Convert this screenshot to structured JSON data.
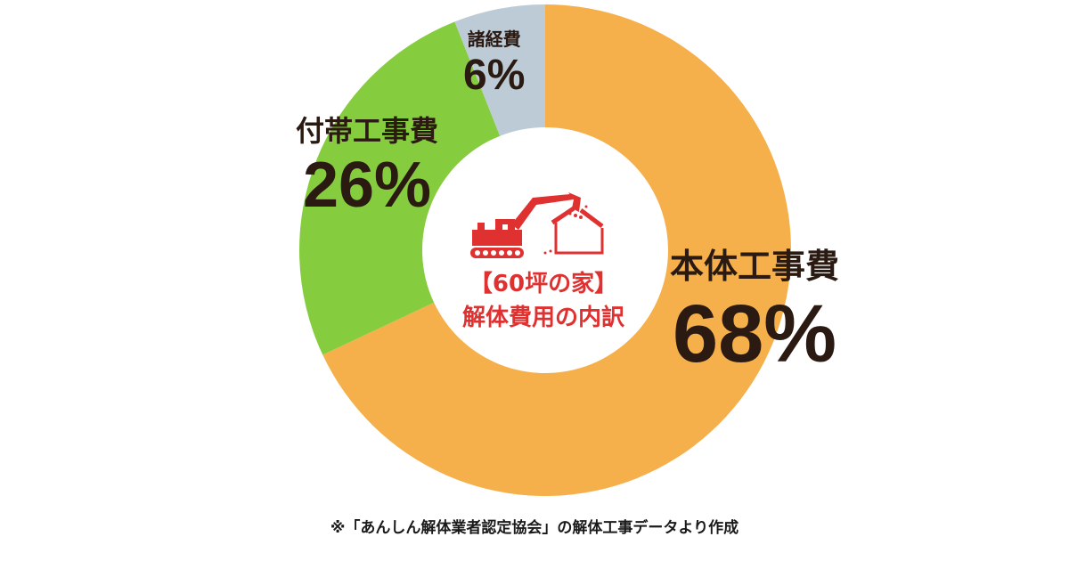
{
  "chart_data": {
    "type": "pie",
    "variant": "donut",
    "title": "【60坪の家】解体費用の内訳",
    "categories": [
      "本体工事費",
      "付帯工事費",
      "諸経費"
    ],
    "values": [
      68,
      26,
      6
    ],
    "unit": "%",
    "colors": [
      "#f6b04b",
      "#86cc3f",
      "#bccbd6"
    ],
    "start_angle_deg": 0,
    "direction": "clockwise",
    "legend": "none (inline labels)",
    "footnote": "※「あんしん解体業者認定協会」の解体工事データより作成"
  },
  "center": {
    "line1": "【60坪の家】",
    "line2": "解体費用の内訳",
    "icon": "excavator-demolishing-house-icon",
    "color": "#e03131"
  },
  "labels": {
    "main": {
      "name": "本体工事費",
      "pct": "68%"
    },
    "sub": {
      "name": "付帯工事費",
      "pct": "26%"
    },
    "misc": {
      "name": "諸経費",
      "pct": "6%"
    }
  },
  "footnote": "※「あんしん解体業者認定協会」の解体工事データより作成"
}
